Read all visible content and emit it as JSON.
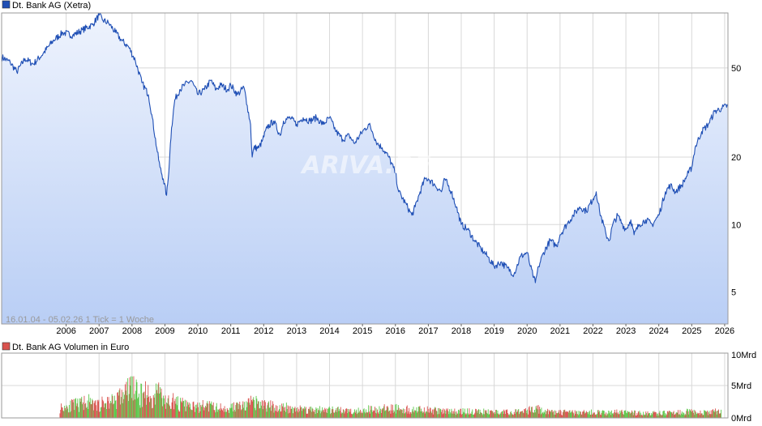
{
  "colors": {
    "price_line": "#1f4fb5",
    "price_fill_top": "#eef3fd",
    "price_fill_bottom": "#b9cef5",
    "legend_price_swatch": "#1f4fb5",
    "legend_volume_swatch": "#d9534f",
    "volume_up": "#5cc64a",
    "volume_down": "#d9534f",
    "grid": "#d8d8d8",
    "frame": "#9a9a9a"
  },
  "chart_data": [
    {
      "type": "line",
      "title": "Dt. Bank AG (Xetra)",
      "legend": "Dt. Bank AG (Xetra)",
      "legend_position": "top-left",
      "grid": true,
      "y_scale": "log",
      "ylim": [
        3.6,
        88
      ],
      "xlim": [
        2004.04,
        2026.1
      ],
      "y_ticks": [
        "50",
        "20",
        "10",
        "5"
      ],
      "x_ticks": [
        "2006",
        "2007",
        "2008",
        "2009",
        "2010",
        "2011",
        "2012",
        "2013",
        "2014",
        "2015",
        "2016",
        "2017",
        "2018",
        "2019",
        "2020",
        "2021",
        "2022",
        "2023",
        "2024",
        "2025",
        "2026"
      ],
      "info_text": "16.01.04 - 05.02.26    1 Tick = 1 Woche",
      "watermark": "ARIVA.DE",
      "series": [
        {
          "x": [
            2004.04,
            2004.3,
            2004.5,
            2004.75,
            2005.0,
            2005.3,
            2005.6,
            2005.9,
            2006.2,
            2006.5,
            2006.8,
            2007.0,
            2007.1,
            2007.3,
            2007.5,
            2007.7,
            2007.9,
            2008.1,
            2008.3,
            2008.5,
            2008.6,
            2008.75,
            2008.85,
            2008.95,
            2009.05,
            2009.1,
            2009.15,
            2009.2,
            2009.3,
            2009.45,
            2009.6,
            2009.8,
            2010.0,
            2010.2,
            2010.4,
            2010.55,
            2010.7,
            2010.9,
            2011.0,
            2011.2,
            2011.4,
            2011.5,
            2011.6,
            2011.65,
            2011.7,
            2011.85,
            2011.95,
            2012.1,
            2012.3,
            2012.5,
            2012.6,
            2012.8,
            2013.0,
            2013.2,
            2013.4,
            2013.6,
            2013.8,
            2014.0,
            2014.2,
            2014.4,
            2014.6,
            2014.75,
            2015.0,
            2015.2,
            2015.3,
            2015.45,
            2015.6,
            2015.8,
            2016.0,
            2016.1,
            2016.3,
            2016.5,
            2016.6,
            2016.75,
            2016.9,
            2017.0,
            2017.2,
            2017.4,
            2017.5,
            2017.7,
            2017.85,
            2018.0,
            2018.2,
            2018.4,
            2018.6,
            2018.8,
            2019.0,
            2019.2,
            2019.4,
            2019.6,
            2019.8,
            2020.0,
            2020.1,
            2020.2,
            2020.25,
            2020.35,
            2020.5,
            2020.7,
            2020.9,
            2021.0,
            2021.2,
            2021.4,
            2021.6,
            2021.8,
            2022.0,
            2022.1,
            2022.2,
            2022.4,
            2022.5,
            2022.6,
            2022.75,
            2022.9,
            2023.0,
            2023.15,
            2023.25,
            2023.4,
            2023.6,
            2023.8,
            2024.0,
            2024.2,
            2024.35,
            2024.5,
            2024.7,
            2024.9,
            2025.0,
            2025.1,
            2025.3,
            2025.5,
            2025.7,
            2025.9,
            2026.1
          ],
          "values": [
            56,
            53,
            48,
            55,
            52,
            58,
            66,
            72,
            70,
            74,
            78,
            86,
            82,
            79,
            72,
            66,
            62,
            54,
            43,
            38,
            31,
            22,
            18,
            16,
            13.5,
            16,
            21,
            27,
            36,
            40,
            42,
            44,
            38,
            40,
            44,
            40,
            42,
            40,
            42,
            38,
            41,
            34,
            28,
            20,
            22,
            22,
            23.5,
            27,
            29,
            25,
            29,
            30,
            28,
            30,
            29,
            30,
            28,
            30,
            26,
            24,
            25,
            23,
            26,
            28,
            26,
            23,
            22,
            20,
            17,
            14,
            12.5,
            11,
            12,
            14,
            16,
            16,
            15,
            14,
            16,
            14,
            12,
            10,
            9.5,
            8.5,
            7.8,
            7.2,
            6.5,
            6.8,
            6.4,
            6.0,
            7.2,
            7.5,
            6.5,
            5.8,
            5.5,
            6.5,
            7.5,
            8.5,
            8.0,
            9.0,
            10.0,
            11.0,
            12.0,
            11.5,
            13.0,
            14.0,
            11.5,
            9.0,
            8.5,
            10.0,
            11.0,
            10.0,
            9.5,
            10.5,
            9.0,
            10.0,
            10.5,
            10.0,
            11.0,
            14.0,
            15.0,
            14.0,
            15.0,
            17.0,
            18.0,
            22.0,
            26.0,
            28.0,
            32.0,
            33.0,
            34.0
          ]
        }
      ]
    },
    {
      "type": "bar",
      "title": "Dt. Bank AG Volumen in Euro",
      "legend": "Dt. Bank AG Volumen in Euro",
      "legend_position": "top-left",
      "y_ticks": [
        "10Mrd",
        "5Mrd",
        "0Mrd"
      ],
      "ylim": [
        0,
        10
      ],
      "y_unit": "Mrd",
      "grid": true,
      "series": [
        {
          "name": "Dt. Bank AG Volumen in Euro",
          "x": [
            2005.8,
            2006.0,
            2006.2,
            2006.4,
            2006.6,
            2006.8,
            2007.0,
            2007.2,
            2007.4,
            2007.6,
            2007.8,
            2008.0,
            2008.2,
            2008.4,
            2008.6,
            2008.8,
            2009.0,
            2009.2,
            2009.4,
            2009.6,
            2009.8,
            2010.0,
            2010.2,
            2010.4,
            2010.6,
            2010.8,
            2011.0,
            2011.2,
            2011.4,
            2011.6,
            2011.8,
            2012.0,
            2012.2,
            2012.4,
            2012.6,
            2012.8,
            2013.0,
            2013.5,
            2014.0,
            2014.5,
            2015.0,
            2015.5,
            2016.0,
            2016.5,
            2017.0,
            2017.5,
            2018.0,
            2018.5,
            2019.0,
            2019.5,
            2020.0,
            2020.2,
            2020.5,
            2021.0,
            2021.5,
            2022.0,
            2022.5,
            2023.0,
            2023.5,
            2024.0,
            2024.5,
            2025.0,
            2025.5,
            2025.9
          ],
          "values": [
            2.0,
            2.3,
            2.5,
            2.6,
            3.5,
            2.4,
            2.6,
            3.0,
            3.5,
            4.0,
            5.0,
            6.5,
            4.0,
            5.5,
            3.2,
            6.0,
            3.0,
            3.5,
            2.8,
            2.5,
            2.2,
            2.0,
            2.5,
            2.2,
            2.0,
            1.8,
            2.0,
            2.4,
            2.2,
            3.0,
            2.8,
            2.5,
            2.3,
            2.0,
            2.1,
            1.9,
            1.8,
            1.6,
            1.5,
            1.4,
            1.6,
            1.7,
            1.9,
            1.6,
            1.5,
            1.3,
            1.3,
            1.2,
            1.2,
            1.1,
            1.3,
            2.2,
            1.2,
            1.1,
            1.0,
            1.1,
            1.0,
            1.2,
            0.9,
            0.9,
            1.0,
            1.3,
            1.0,
            1.4
          ]
        }
      ]
    }
  ]
}
